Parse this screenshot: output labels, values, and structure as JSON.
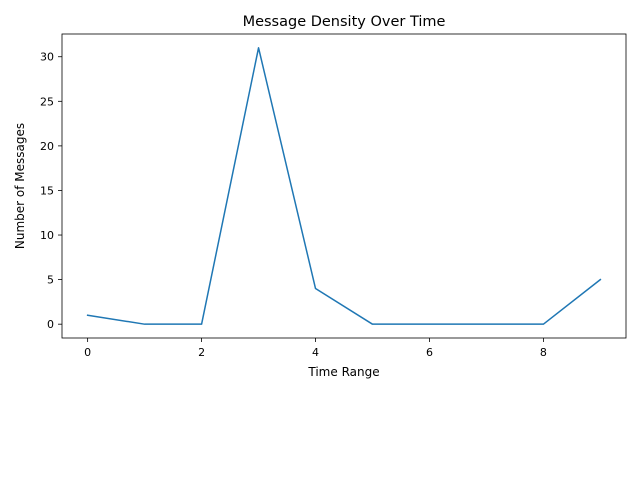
{
  "chart_data": {
    "type": "line",
    "title": "Message Density Over Time",
    "xlabel": "Time Range",
    "ylabel": "Number of Messages",
    "x": [
      0,
      1,
      2,
      3,
      4,
      5,
      6,
      7,
      8,
      9
    ],
    "series": [
      {
        "values": [
          1,
          0,
          0,
          31,
          4,
          0,
          0,
          0,
          0,
          5
        ],
        "color": "#1f77b4"
      }
    ],
    "xlim": [
      -0.45,
      9.45
    ],
    "ylim": [
      -1.55,
      32.55
    ],
    "xticks": [
      0,
      2,
      4,
      6,
      8
    ],
    "yticks": [
      0,
      5,
      10,
      15,
      20,
      25,
      30
    ],
    "grid": false,
    "legend": "none"
  }
}
